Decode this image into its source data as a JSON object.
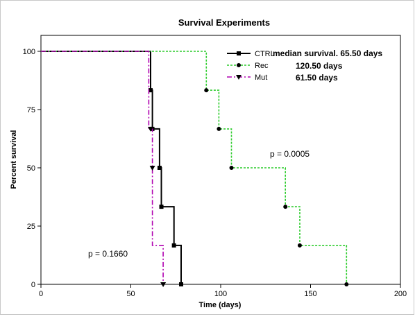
{
  "chart_data": {
    "type": "line",
    "subtype": "kaplan-meier step",
    "title": "Survival Experiments",
    "xlabel": "Time (days)",
    "ylabel": "Percent survival",
    "xlim": [
      0,
      200
    ],
    "ylim": [
      0,
      100
    ],
    "xticks": [
      0,
      50,
      100,
      150,
      200
    ],
    "yticks": [
      0,
      25,
      50,
      75,
      100
    ],
    "grid": false,
    "legend_position": "top-right",
    "series": [
      {
        "name": "CTRL",
        "color": "#000000",
        "line_style": "solid",
        "marker": "square",
        "steps": [
          [
            0,
            100
          ],
          [
            61,
            100
          ],
          [
            61,
            83.3
          ],
          [
            62,
            83.3
          ],
          [
            62,
            66.7
          ],
          [
            66,
            66.7
          ],
          [
            66,
            50
          ],
          [
            67,
            50
          ],
          [
            67,
            33.3
          ],
          [
            74,
            33.3
          ],
          [
            74,
            16.7
          ],
          [
            78,
            16.7
          ],
          [
            78,
            0
          ]
        ],
        "points": [
          [
            61,
            83.3
          ],
          [
            62,
            66.7
          ],
          [
            66,
            50
          ],
          [
            67,
            33.3
          ],
          [
            74,
            16.7
          ],
          [
            78,
            0
          ]
        ]
      },
      {
        "name": "Rec",
        "color": "#2dcc2d",
        "line_style": "dotted",
        "marker": "circle",
        "steps": [
          [
            0,
            100
          ],
          [
            92,
            100
          ],
          [
            92,
            83.3
          ],
          [
            99,
            83.3
          ],
          [
            99,
            66.7
          ],
          [
            106,
            66.7
          ],
          [
            106,
            50
          ],
          [
            136,
            50
          ],
          [
            136,
            33.3
          ],
          [
            144,
            33.3
          ],
          [
            144,
            16.7
          ],
          [
            170,
            16.7
          ],
          [
            170,
            0
          ]
        ],
        "points": [
          [
            92,
            83.3
          ],
          [
            99,
            66.7
          ],
          [
            106,
            50
          ],
          [
            136,
            33.3
          ],
          [
            144,
            16.7
          ],
          [
            170,
            0
          ]
        ]
      },
      {
        "name": "Mut",
        "color": "#b000b0",
        "line_style": "dashdot",
        "marker": "triangle-down",
        "steps": [
          [
            0,
            100
          ],
          [
            60,
            100
          ],
          [
            60,
            66.7
          ],
          [
            62,
            66.7
          ],
          [
            62,
            50
          ],
          [
            62,
            16.7
          ],
          [
            68,
            16.7
          ],
          [
            68,
            0
          ]
        ],
        "points": [
          [
            61,
            66.7
          ],
          [
            62,
            50
          ],
          [
            68,
            0
          ]
        ]
      }
    ],
    "annotations": [
      {
        "id": "median_header",
        "text": "median survival. 65.50 days"
      },
      {
        "id": "median_rec",
        "text": "120.50 days"
      },
      {
        "id": "median_mut",
        "text": "61.50 days"
      },
      {
        "id": "p_rec",
        "text": "p = 0.0005"
      },
      {
        "id": "p_mut",
        "text": "p = 0.1660"
      }
    ]
  }
}
